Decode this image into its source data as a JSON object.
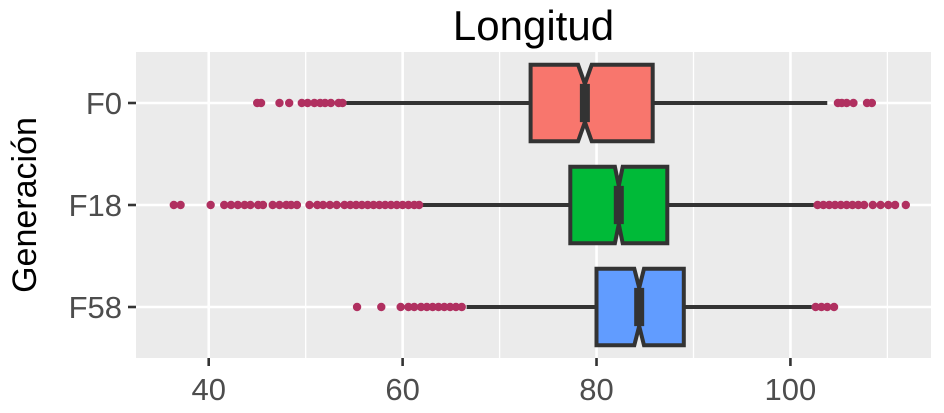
{
  "chart_data": {
    "type": "boxplot",
    "orientation": "horizontal",
    "notched": true,
    "title": "Longitud",
    "xlabel": "",
    "ylabel": "Generación",
    "xlim": [
      32.5,
      114.5
    ],
    "x_major_ticks": [
      40,
      60,
      80,
      100
    ],
    "x_tick_labels": [
      "40",
      "60",
      "80",
      "100"
    ],
    "x_minor_ticks": [
      50,
      70,
      90,
      110
    ],
    "categories": [
      "F0",
      "F18",
      "F58"
    ],
    "grid": true,
    "legend": "none",
    "outlier_color": "#B03060",
    "series": [
      {
        "category": "F0",
        "color": "#F8766D",
        "whisker_low": 54.2,
        "q1": 73.2,
        "median": 78.8,
        "q3": 85.8,
        "whisker_high": 103.8,
        "notch_low": 78.1,
        "notch_high": 79.5,
        "outliers": [
          45.0,
          45.4,
          47.3,
          48.3,
          49.6,
          50.2,
          50.9,
          51.5,
          52.0,
          52.6,
          53.4,
          53.8,
          104.9,
          105.3,
          105.8,
          106.5,
          107.9,
          108.4
        ]
      },
      {
        "category": "F18",
        "color": "#00BA38",
        "whisker_low": 61.9,
        "q1": 77.3,
        "median": 82.3,
        "q3": 87.3,
        "whisker_high": 102.4,
        "notch_low": 81.9,
        "notch_high": 82.7,
        "outliers": [
          36.4,
          37.1,
          40.2,
          41.6,
          42.3,
          43.0,
          43.7,
          44.3,
          45.1,
          45.6,
          46.6,
          47.3,
          48.0,
          48.5,
          49.1,
          50.4,
          51.2,
          51.8,
          52.5,
          53.2,
          54.0,
          54.6,
          55.2,
          55.8,
          56.4,
          57.0,
          57.6,
          58.2,
          58.8,
          59.4,
          60.0,
          60.6,
          61.2,
          61.7,
          102.8,
          103.4,
          104.0,
          104.6,
          105.2,
          105.8,
          106.4,
          107.0,
          107.6,
          108.5,
          109.3,
          110.1,
          110.8,
          111.9
        ]
      },
      {
        "category": "F58",
        "color": "#619CFF",
        "whisker_low": 66.6,
        "q1": 80.0,
        "median": 84.4,
        "q3": 89.0,
        "whisker_high": 102.2,
        "notch_low": 83.9,
        "notch_high": 84.9,
        "outliers": [
          55.3,
          57.8,
          59.8,
          60.6,
          61.2,
          61.9,
          62.5,
          63.1,
          63.7,
          64.3,
          64.9,
          65.5,
          66.1,
          102.6,
          103.2,
          103.8,
          104.5
        ]
      }
    ]
  }
}
